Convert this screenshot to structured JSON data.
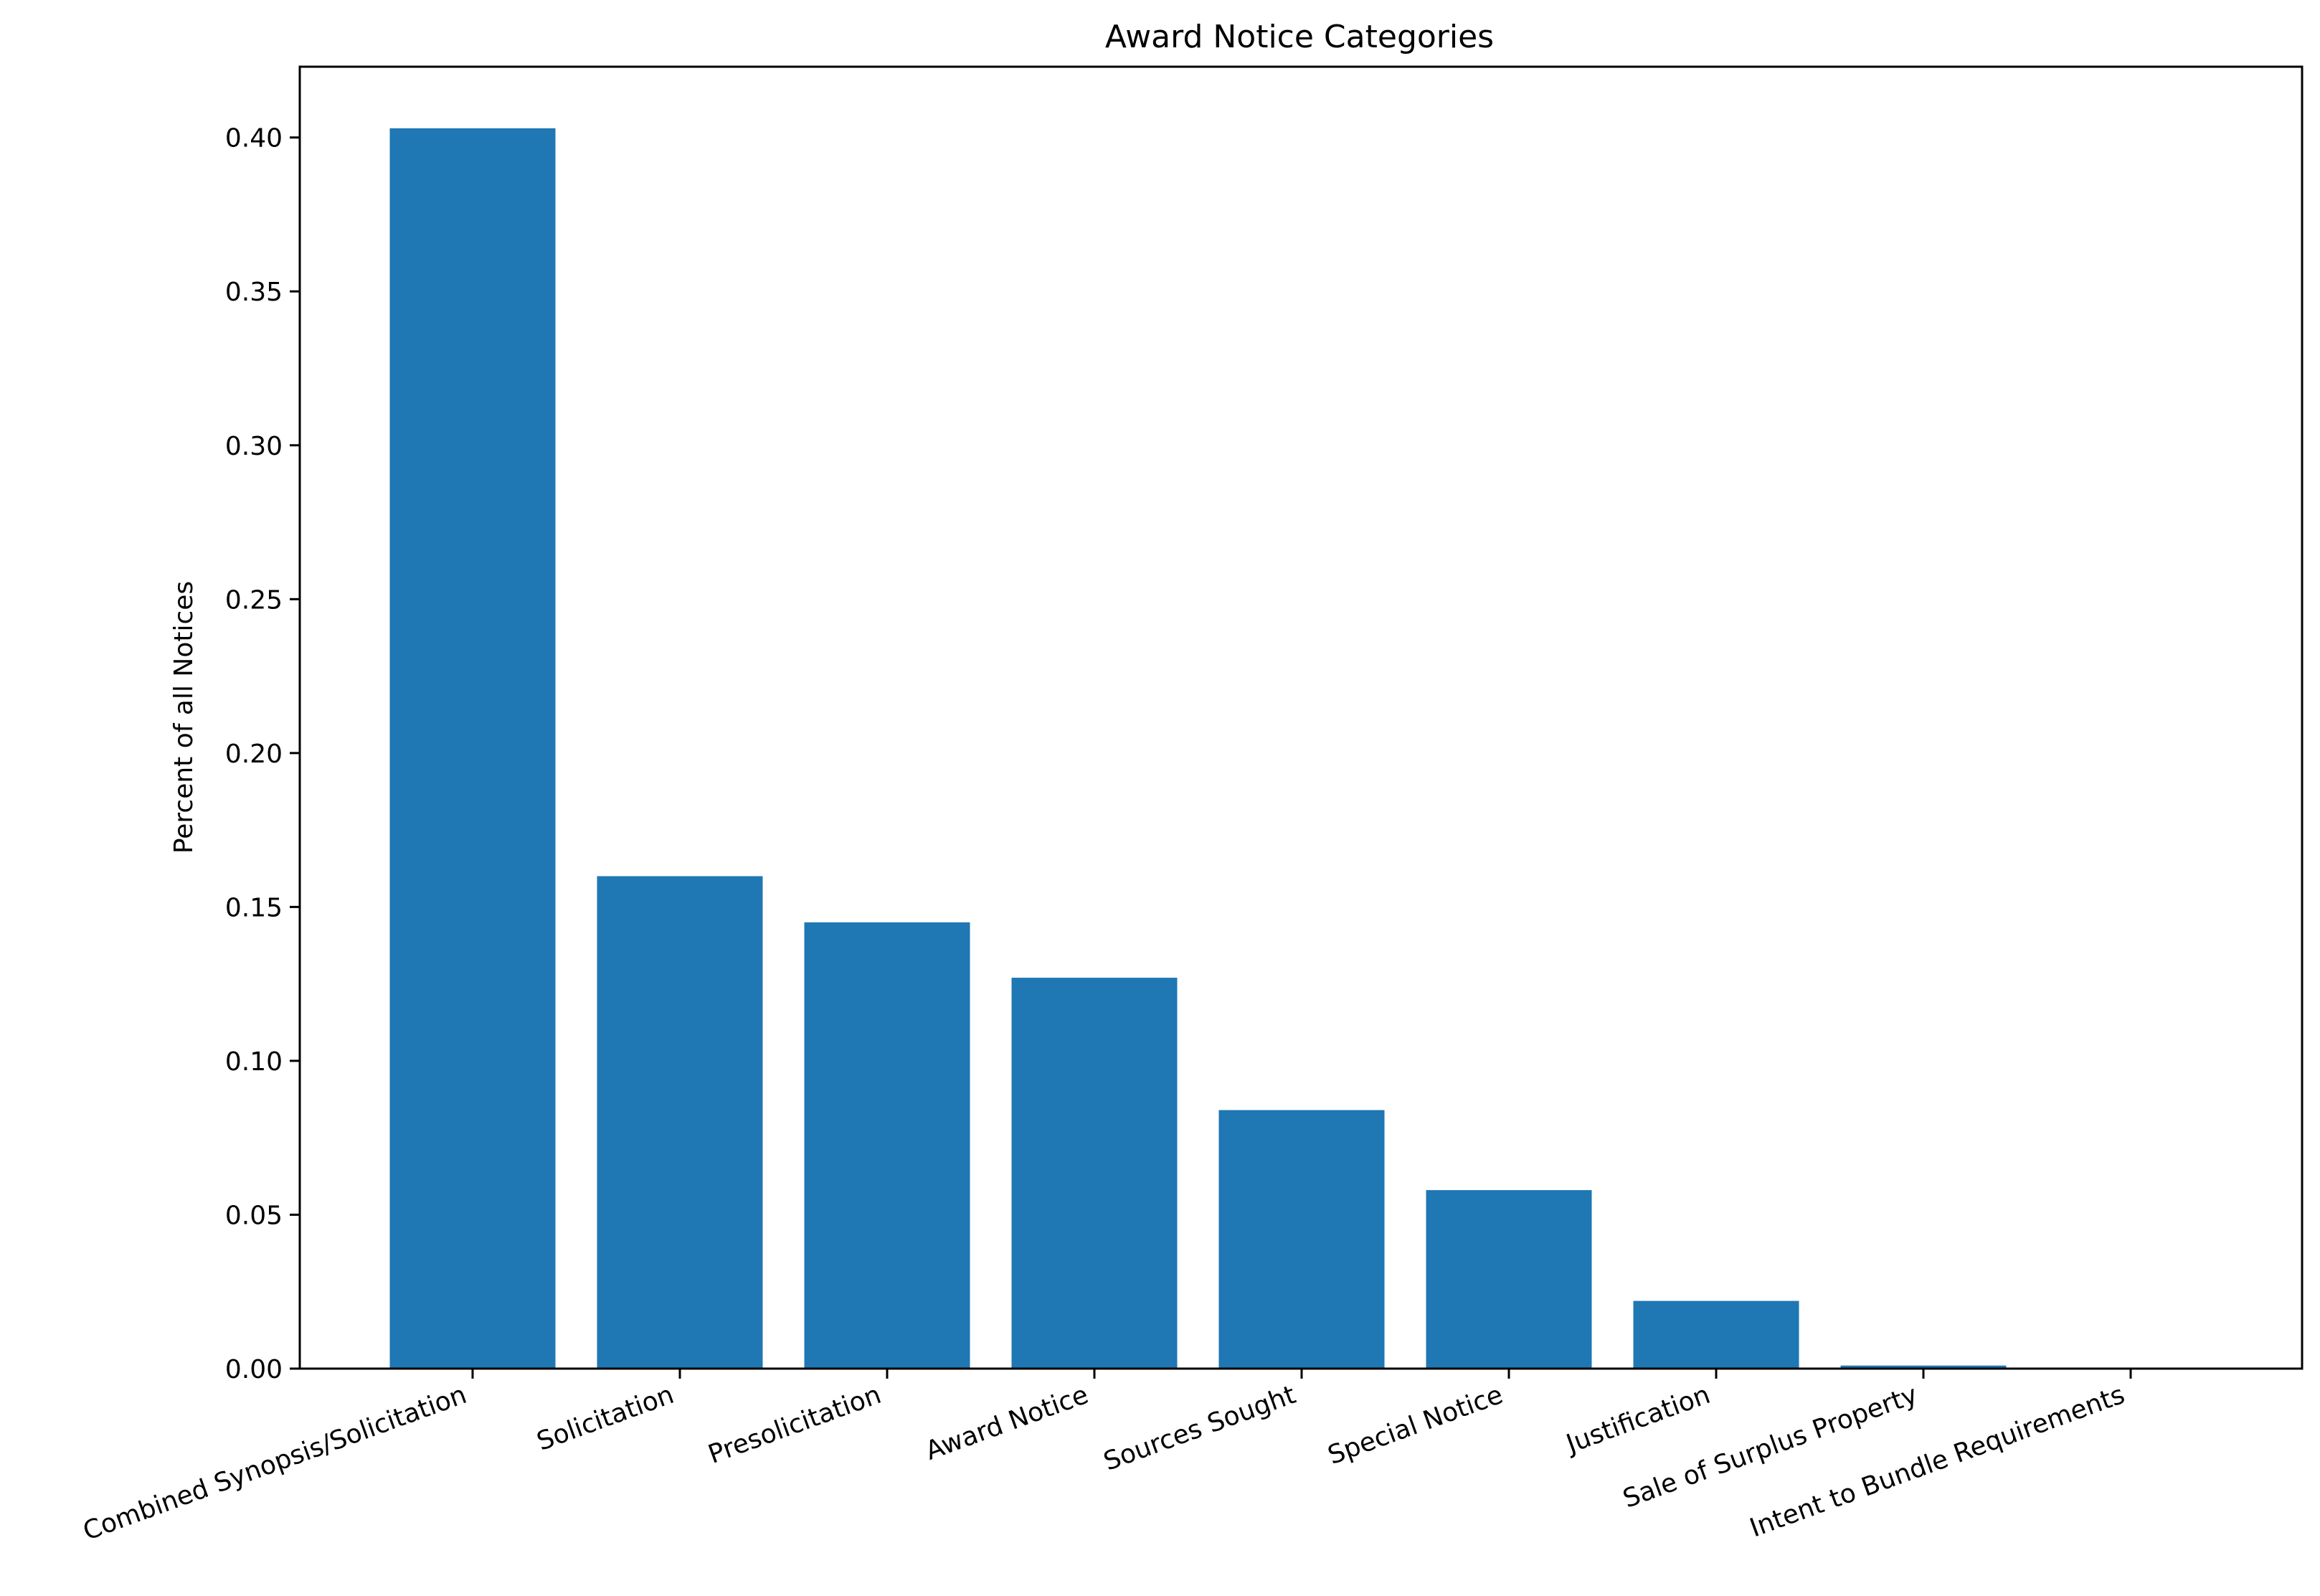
{
  "chart_data": {
    "type": "bar",
    "title": "Award Notice Categories",
    "xlabel": "",
    "ylabel": "Percent of all Notices",
    "categories": [
      "Combined Synopsis/Solicitation",
      "Solicitation",
      "Presolicitation",
      "Award Notice",
      "Sources Sought",
      "Special Notice",
      "Justification",
      "Sale of Surplus Property",
      "Intent to Bundle Requirements"
    ],
    "values": [
      0.403,
      0.16,
      0.145,
      0.127,
      0.084,
      0.058,
      0.022,
      0.001,
      0.0
    ],
    "ylim": [
      0,
      0.423
    ],
    "yticks": [
      "0.00",
      "0.05",
      "0.10",
      "0.15",
      "0.20",
      "0.25",
      "0.30",
      "0.35",
      "0.40"
    ],
    "bar_color": "#1f77b4",
    "grid": false,
    "legend": "none"
  }
}
